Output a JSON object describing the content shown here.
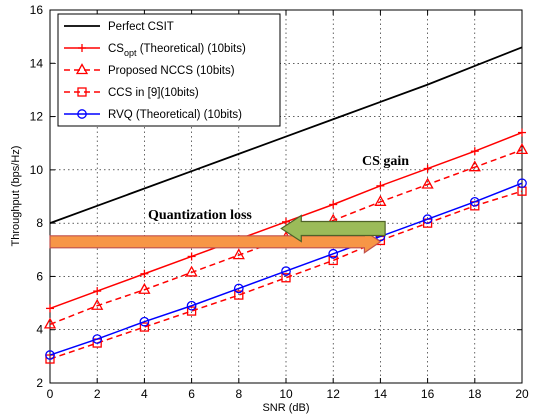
{
  "chart_data": {
    "type": "line",
    "xlabel": "SNR (dB)",
    "ylabel": "Throughput (bps/Hz)",
    "xlim": [
      0,
      20
    ],
    "ylim": [
      2,
      16
    ],
    "xticks": [
      0,
      2,
      4,
      6,
      8,
      10,
      12,
      14,
      16,
      18,
      20
    ],
    "yticks": [
      2,
      4,
      6,
      8,
      10,
      12,
      14,
      16
    ],
    "grid": true,
    "legend_position": "top-left",
    "x": [
      0,
      2,
      4,
      6,
      8,
      10,
      12,
      14,
      16,
      18,
      20
    ],
    "series": [
      {
        "name": "Perfect CSIT",
        "color": "#000000",
        "style": "solid",
        "marker": "none",
        "values": [
          8.0,
          8.65,
          9.3,
          9.95,
          10.6,
          11.25,
          11.9,
          12.55,
          13.2,
          13.9,
          14.6
        ]
      },
      {
        "name_main": "CS",
        "name_sub": "opt",
        "name_rest": " (Theoretical) (10bits)",
        "color": "#ff0000",
        "style": "solid",
        "marker": "plus",
        "values": [
          4.8,
          5.45,
          6.1,
          6.75,
          7.4,
          8.05,
          8.7,
          9.4,
          10.05,
          10.7,
          11.4
        ]
      },
      {
        "name": "Proposed NCCS  (10bits)",
        "color": "#ff0000",
        "style": "dashed",
        "marker": "triangle",
        "values": [
          4.2,
          4.9,
          5.5,
          6.15,
          6.8,
          7.45,
          8.1,
          8.8,
          9.45,
          10.1,
          10.75
        ]
      },
      {
        "name": "CCS in  [9](10bits)",
        "color": "#ff0000",
        "style": "dashed",
        "marker": "square",
        "values": [
          2.9,
          3.5,
          4.1,
          4.7,
          5.3,
          5.95,
          6.6,
          7.35,
          8.0,
          8.65,
          9.2
        ]
      },
      {
        "name": "RVQ (Theoretical) (10bits)",
        "color": "#0000ff",
        "style": "solid",
        "marker": "circle",
        "values": [
          3.05,
          3.65,
          4.3,
          4.9,
          5.55,
          6.2,
          6.85,
          7.5,
          8.15,
          8.8,
          9.5
        ]
      }
    ],
    "annotations": [
      {
        "text": "CS gain"
      },
      {
        "text": "Quantization loss"
      }
    ],
    "arrows": [
      {
        "label": "quantization-loss-arrow",
        "color": "#f79646",
        "edge": "#c0504d",
        "direction": "right",
        "from": [
          0,
          7.3
        ],
        "to": [
          14,
          7.3
        ]
      },
      {
        "label": "cs-gain-arrow",
        "color": "#9bbb59",
        "edge": "#4f6228",
        "direction": "left",
        "from": [
          14.2,
          7.8
        ],
        "to": [
          9.8,
          7.8
        ]
      }
    ]
  }
}
